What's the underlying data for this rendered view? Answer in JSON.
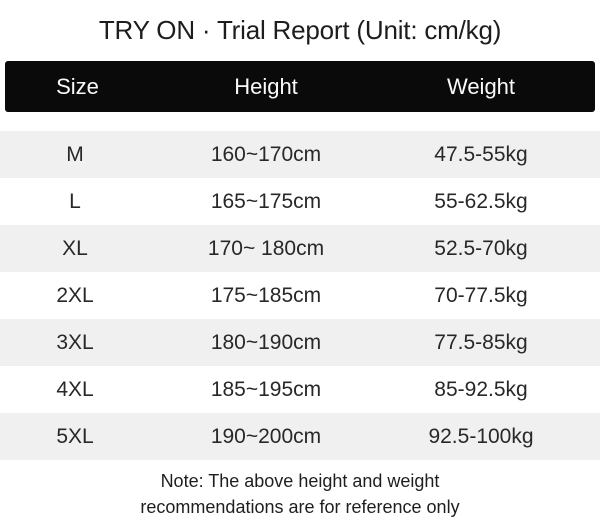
{
  "title": "TRY ON · Trial Report (Unit: cm/kg)",
  "table": {
    "headers": [
      "Size",
      "Height",
      "Weight"
    ],
    "rows": [
      {
        "size": "M",
        "height": "160~170cm",
        "weight": "47.5-55kg"
      },
      {
        "size": "L",
        "height": "165~175cm",
        "weight": "55-62.5kg"
      },
      {
        "size": "XL",
        "height": "170~ 180cm",
        "weight": "52.5-70kg"
      },
      {
        "size": "2XL",
        "height": "175~185cm",
        "weight": "70-77.5kg"
      },
      {
        "size": "3XL",
        "height": "180~190cm",
        "weight": "77.5-85kg"
      },
      {
        "size": "4XL",
        "height": "185~195cm",
        "weight": "85-92.5kg"
      },
      {
        "size": "5XL",
        "height": "190~200cm",
        "weight": "92.5-100kg"
      }
    ]
  },
  "note": {
    "lines": [
      "Note: The above height and weight",
      "recommendations are for reference only"
    ]
  },
  "colors": {
    "header_bg": "#0a0a0a",
    "header_text": "#fafafa",
    "row_alt_bg": "#f0f0f0",
    "body_text": "#282828"
  },
  "chart_data": {
    "type": "table",
    "title": "TRY ON · Trial Report (Unit: cm/kg)",
    "columns": [
      "Size",
      "Height",
      "Weight"
    ],
    "rows": [
      [
        "M",
        "160~170cm",
        "47.5-55kg"
      ],
      [
        "L",
        "165~175cm",
        "55-62.5kg"
      ],
      [
        "XL",
        "170~ 180cm",
        "52.5-70kg"
      ],
      [
        "2XL",
        "175~185cm",
        "70-77.5kg"
      ],
      [
        "3XL",
        "180~190cm",
        "77.5-85kg"
      ],
      [
        "4XL",
        "185~195cm",
        "85-92.5kg"
      ],
      [
        "5XL",
        "190~200cm",
        "92.5-100kg"
      ]
    ],
    "units": "cm/kg",
    "note": "Note: The above height and weight recommendations are for reference only"
  }
}
